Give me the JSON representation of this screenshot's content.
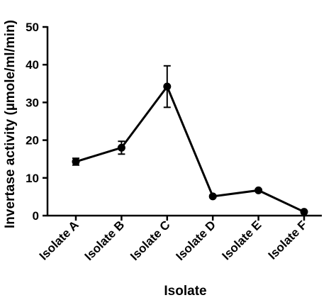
{
  "chart_data": {
    "type": "line",
    "title": "",
    "xlabel": "Isolate",
    "ylabel": "Invertase activity (µmole/ml/min)",
    "ylim": [
      0,
      50
    ],
    "yticks": [
      "0",
      "10",
      "20",
      "30",
      "40",
      "50"
    ],
    "categories": [
      "Isolate A",
      "Isolate B",
      "Isolate C",
      "Isolate D",
      "Isolate E",
      "Isolate F"
    ],
    "series": [
      {
        "values": [
          14.3,
          18.0,
          34.2,
          5.1,
          6.7,
          1.0
        ],
        "error": [
          0.9,
          1.7,
          5.5,
          0.3,
          0.3,
          0.2
        ],
        "color": "#000000"
      }
    ],
    "grid": false,
    "legend": "none"
  }
}
